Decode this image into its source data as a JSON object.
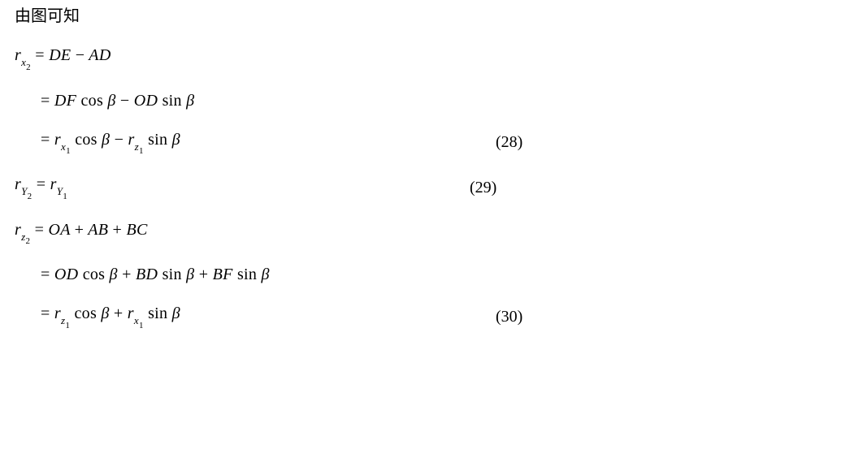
{
  "intro_cjk": "由图可知",
  "eq28_line1": "r<sub class='sub'>x<span class='subnum'>2</span></sub> <span class='rm'>=</span> DE <span class='rm'>&minus;</span> AD",
  "eq28_line2": "<span class='rm'>=</span> DF <span class='rm'>cos</span> &beta; <span class='rm'>&minus;</span> OD <span class='rm'>sin</span> &beta;",
  "eq28_line3": "<span class='rm'>=</span> r<sub class='sub'>x<span class='subnum'>1</span></sub> <span class='rm'>cos</span> &beta; <span class='rm'>&minus;</span> r<sub class='sub'>z<span class='subnum'>1</span></sub> <span class='rm'>sin</span> &beta;",
  "eq28_num": "(28)",
  "eq29_line1": "r<sub class='sub'>Y<span class='subnum'>2</span></sub> <span class='rm'>=</span> r<sub class='sub'>Y<span class='subnum'>1</span></sub>",
  "eq29_num": "(29)",
  "eq30_line1": "r<sub class='sub'>z<span class='subnum'>2</span></sub> <span class='rm'>=</span> OA <span class='rm'>+</span> AB <span class='rm'>+</span> BC",
  "eq30_line2": "<span class='rm'>=</span> OD <span class='rm'>cos</span> &beta; <span class='rm'>+</span> BD <span class='rm'>sin</span> &beta; <span class='rm'>+</span> BF <span class='rm'>sin</span> &beta;",
  "eq30_line3": "<span class='rm'>=</span> r<sub class='sub'>z<span class='subnum'>1</span></sub> <span class='rm'>cos</span> &beta; <span class='rm'>+</span> r<sub class='sub'>x<span class='subnum'>1</span></sub> <span class='rm'>sin</span> &beta;",
  "eq30_num": "(30)"
}
